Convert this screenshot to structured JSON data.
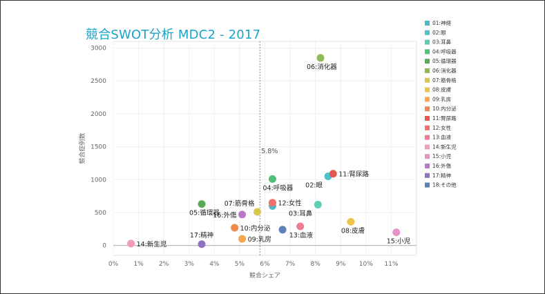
{
  "chart_data": {
    "type": "scatter",
    "title": "競合SWOT分析 MDC2 - 2017",
    "xlabel": "競合シェア",
    "ylabel": "競合症例数",
    "xlim": [
      0,
      12
    ],
    "ylim": [
      -150,
      3100
    ],
    "x_ticks": [
      "0%",
      "1%",
      "2%",
      "3%",
      "4%",
      "5%",
      "6%",
      "7%",
      "8%",
      "9%",
      "10%",
      "11%"
    ],
    "y_ticks": [
      "0",
      "500",
      "1000",
      "1500",
      "2000",
      "2500",
      "3000"
    ],
    "reference_line": {
      "x": 5.8,
      "label": "5.8%"
    },
    "grid": true,
    "legend_position": "right",
    "series": [
      {
        "name": "01:神経",
        "color": "#4bb8c9",
        "x": 6.3,
        "y": 600,
        "label": ""
      },
      {
        "name": "02:眼",
        "color": "#4fc1cc",
        "x": 8.5,
        "y": 1050,
        "label": "02:眼"
      },
      {
        "name": "03:耳鼻",
        "color": "#5ccfb2",
        "x": 8.1,
        "y": 620,
        "label": "03:耳鼻"
      },
      {
        "name": "04:呼吸器",
        "color": "#4fbf7a",
        "x": 6.3,
        "y": 1010,
        "label": "04:呼吸器"
      },
      {
        "name": "05:循環器",
        "color": "#5aaa55",
        "x": 3.5,
        "y": 630,
        "label": "05:循環器"
      },
      {
        "name": "06:消化器",
        "color": "#8fba55",
        "x": 8.2,
        "y": 2850,
        "label": "06:消化器"
      },
      {
        "name": "07:筋骨格",
        "color": "#d6c84a",
        "x": 5.7,
        "y": 510,
        "label": "07:筋骨格"
      },
      {
        "name": "08:皮膚",
        "color": "#eec54a",
        "x": 9.4,
        "y": 360,
        "label": "08:皮膚"
      },
      {
        "name": "09:乳房",
        "color": "#f5a94e",
        "x": 5.1,
        "y": 100,
        "label": "09:乳房"
      },
      {
        "name": "10:内分泌",
        "color": "#ee8a4e",
        "x": 4.8,
        "y": 270,
        "label": "10:内分泌"
      },
      {
        "name": "11:腎尿路",
        "color": "#e8574f",
        "x": 8.7,
        "y": 1090,
        "label": "11:腎尿路"
      },
      {
        "name": "12:女性",
        "color": "#f07070",
        "x": 6.3,
        "y": 650,
        "label": "12:女性"
      },
      {
        "name": "13:血液",
        "color": "#ee7d92",
        "x": 7.4,
        "y": 290,
        "label": "13:血液"
      },
      {
        "name": "14:新生児",
        "color": "#f29bbb",
        "x": 0.7,
        "y": 30,
        "label": "14:新生児"
      },
      {
        "name": "15:小児",
        "color": "#e990c8",
        "x": 11.2,
        "y": 200,
        "label": "15:小児"
      },
      {
        "name": "16:外傷",
        "color": "#bb78c9",
        "x": 5.1,
        "y": 470,
        "label": "16:外傷"
      },
      {
        "name": "17:精神",
        "color": "#8f73c2",
        "x": 3.5,
        "y": 20,
        "label": "17:精神"
      },
      {
        "name": "18:その他",
        "color": "#5f7fb8",
        "x": 6.7,
        "y": 240,
        "label": ""
      }
    ]
  }
}
